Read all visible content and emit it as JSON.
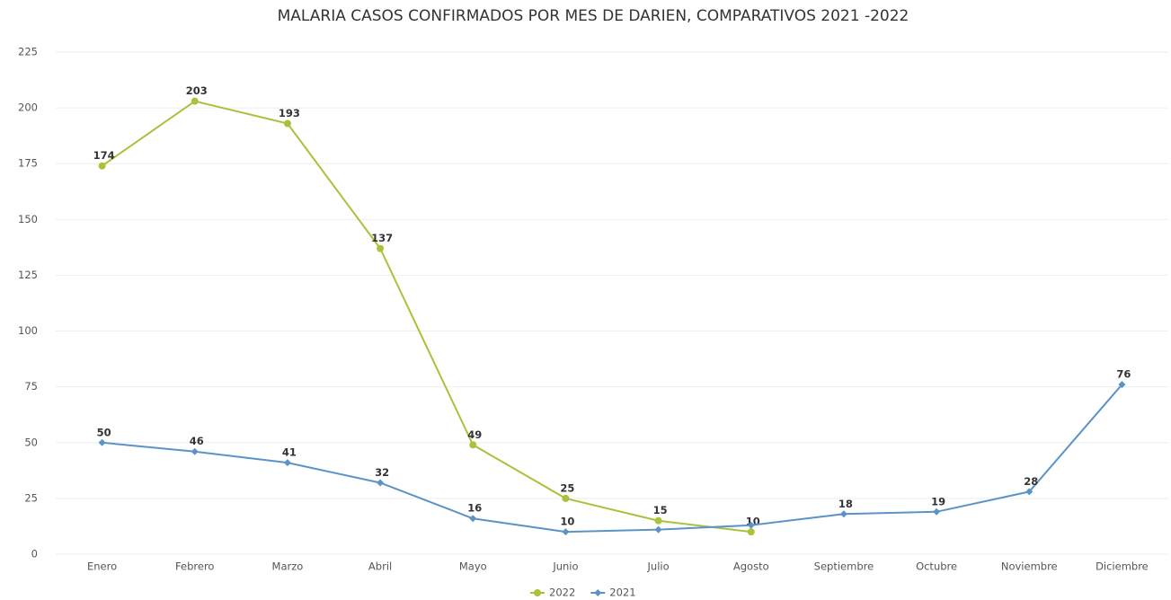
{
  "chart_data": {
    "type": "line",
    "title": "MALARIA CASOS CONFIRMADOS POR MES DE DARIEN, COMPARATIVOS 2021 -2022",
    "categories": [
      "Enero",
      "Febrero",
      "Marzo",
      "Abril",
      "Mayo",
      "Junio",
      "Julio",
      "Agosto",
      "Septiembre",
      "Octubre",
      "Noviembre",
      "Diciembre"
    ],
    "series": [
      {
        "name": "2022",
        "color": "#a8c23a",
        "marker": "circle",
        "values": [
          174,
          203,
          193,
          137,
          49,
          25,
          15,
          10,
          null,
          null,
          null,
          null
        ],
        "value_labels": [
          "174",
          "203",
          "193",
          "137",
          "49",
          "25",
          "15",
          "10",
          null,
          null,
          null,
          null
        ]
      },
      {
        "name": "2021",
        "color": "#5b93c7",
        "marker": "diamond",
        "values": [
          50,
          46,
          41,
          32,
          16,
          10,
          11,
          13,
          18,
          19,
          28,
          76
        ],
        "value_labels": [
          "50",
          "46",
          "41",
          "32",
          "16",
          "10",
          null,
          null,
          "18",
          "19",
          "28",
          "76"
        ]
      }
    ],
    "ylim": [
      0,
      225
    ],
    "yticks": [
      0,
      25,
      50,
      75,
      100,
      125,
      150,
      175,
      200,
      225
    ],
    "grid": true,
    "legend": "bottom"
  }
}
